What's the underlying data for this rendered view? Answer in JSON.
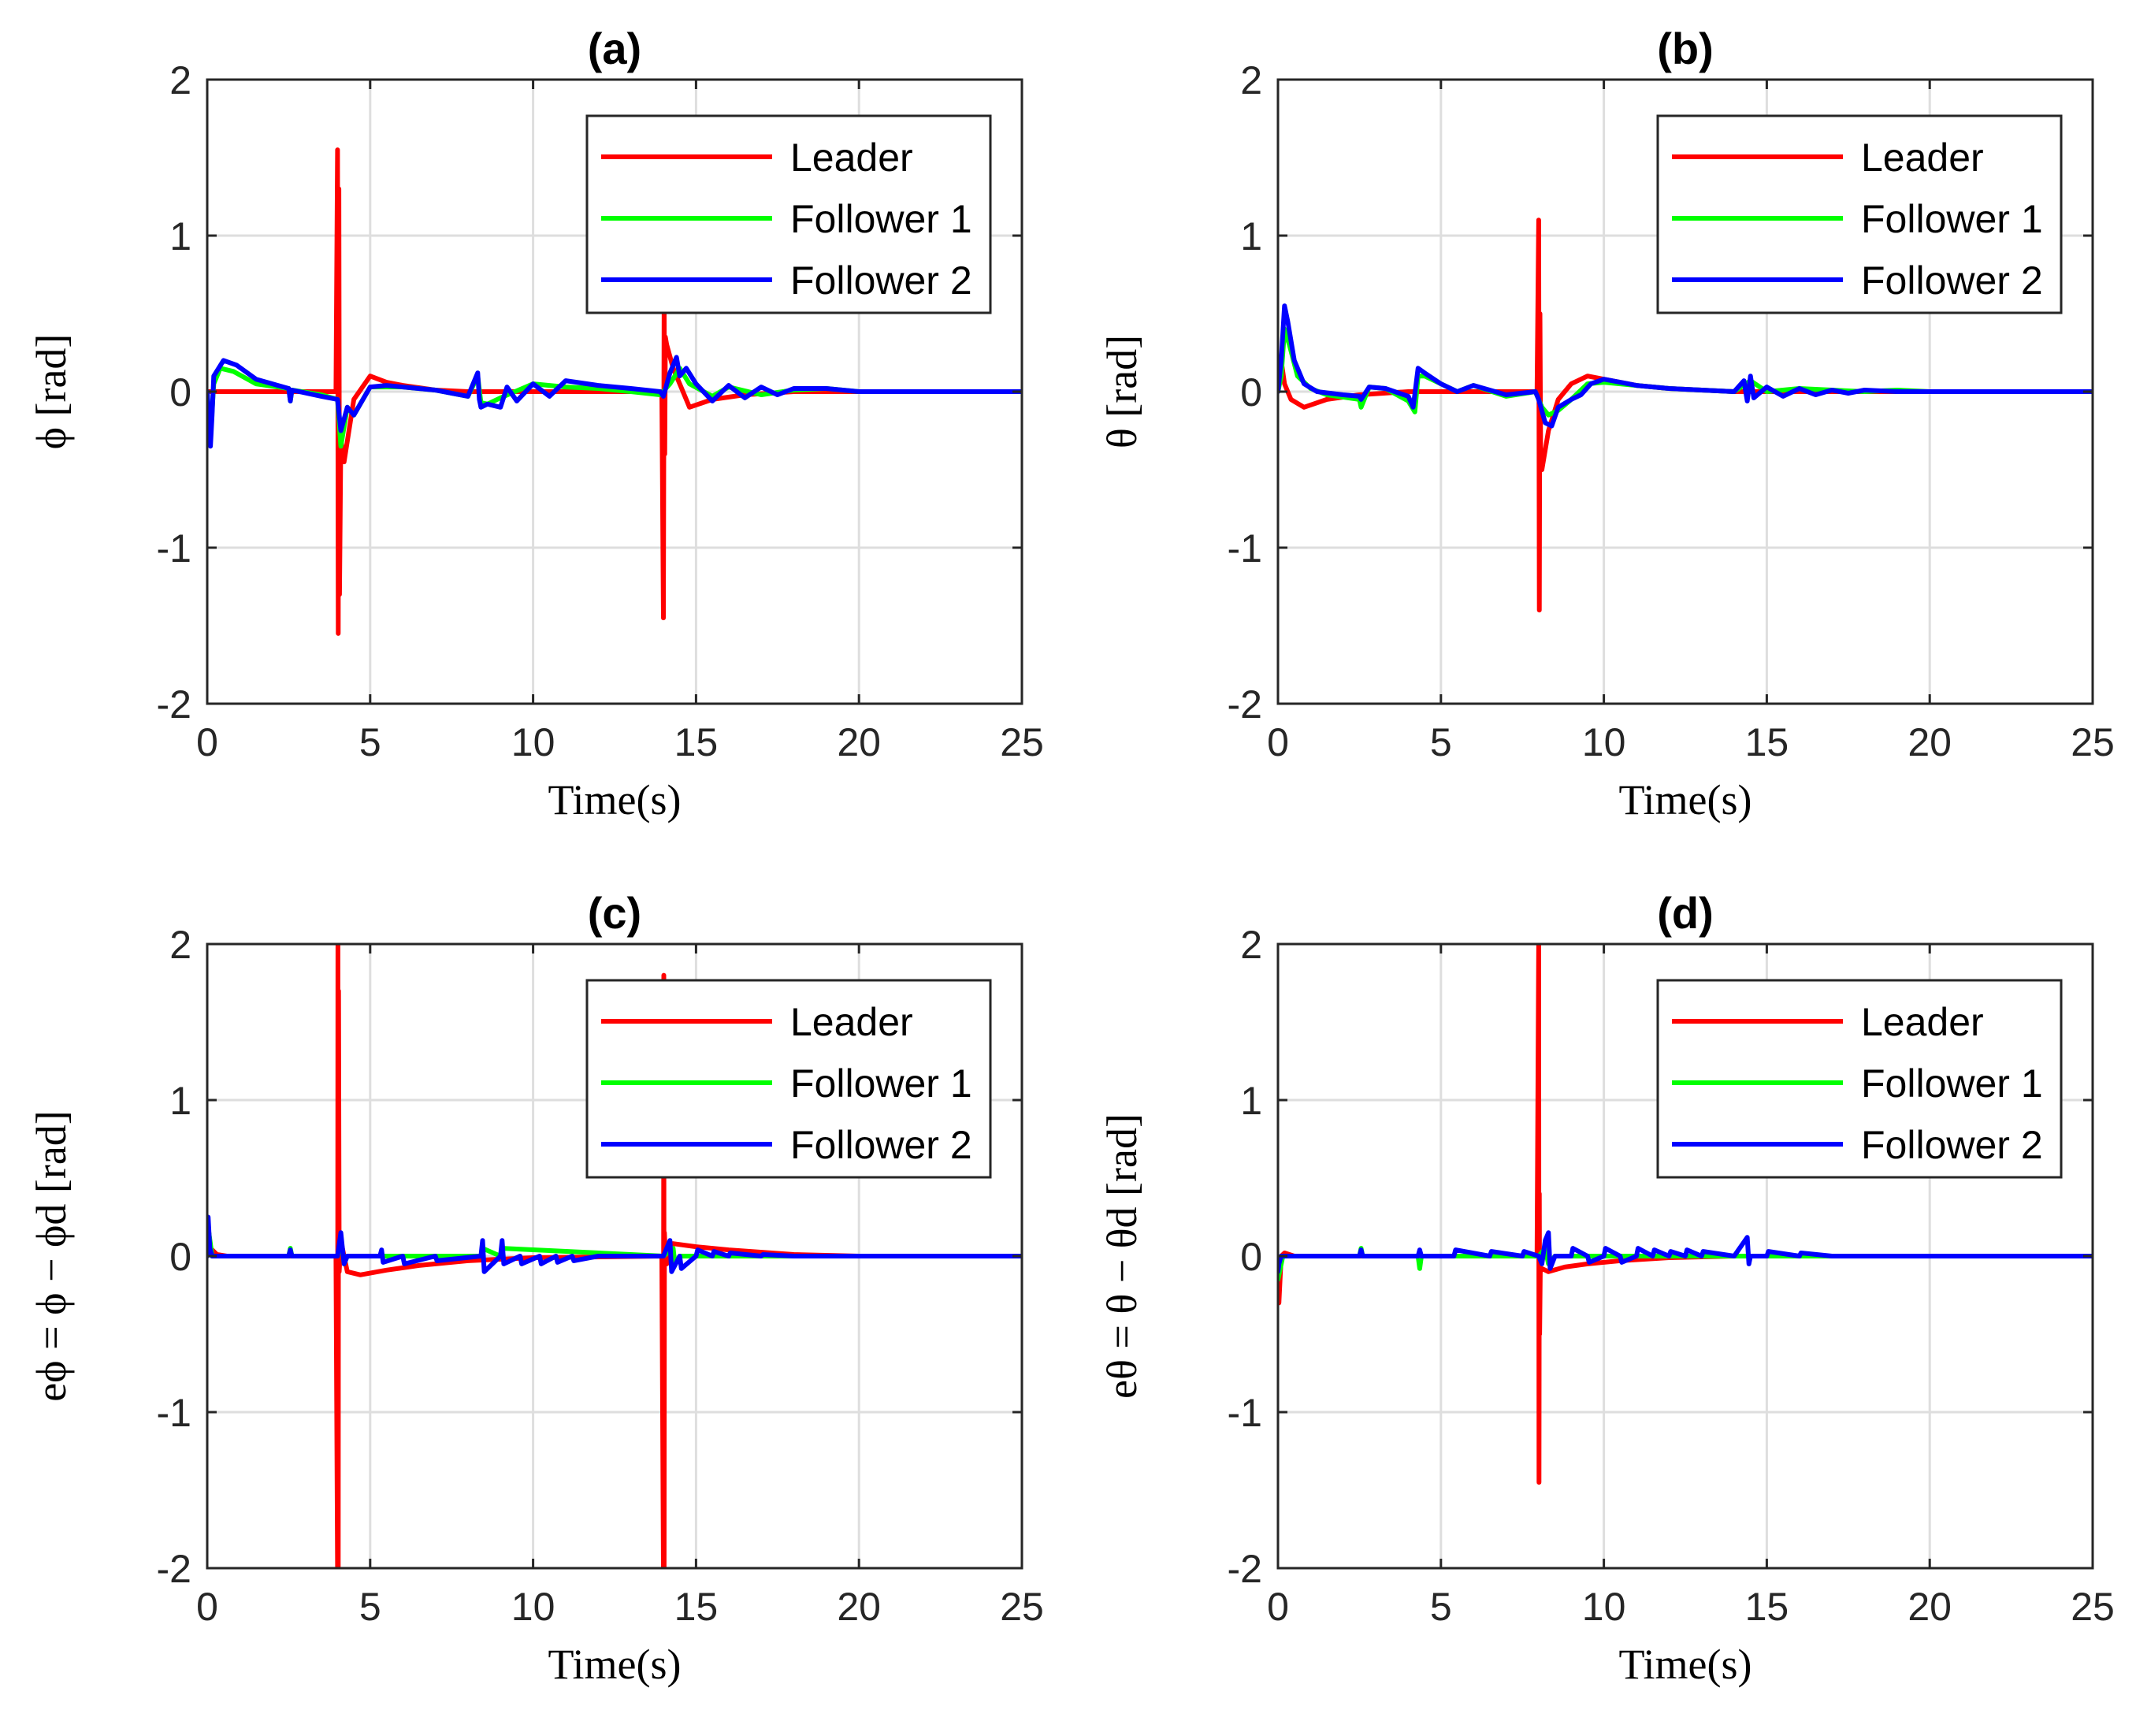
{
  "chart_data": [
    {
      "type": "line",
      "panel": "a",
      "title": "(a)",
      "xlabel": "Time(s)",
      "ylabel": "ϕ [rad]",
      "xlim": [
        0,
        25
      ],
      "ylim": [
        -2,
        2
      ],
      "xticks": [
        0,
        5,
        10,
        15,
        20,
        25
      ],
      "yticks": [
        -2,
        -1,
        0,
        1,
        2
      ],
      "grid": true,
      "legend_position": "top-right",
      "series": [
        {
          "name": "Leader",
          "color": "#ff0000",
          "x": [
            0,
            3.5,
            3.95,
            4.0,
            4.02,
            4.04,
            4.06,
            4.1,
            4.2,
            4.5,
            5.0,
            5.5,
            6,
            7,
            8,
            10,
            12,
            13.5,
            13.95,
            14.0,
            14.02,
            14.04,
            14.06,
            14.1,
            14.3,
            14.8,
            15.5,
            16.5,
            18,
            20,
            25
          ],
          "y": [
            0,
            0,
            0,
            1.55,
            -1.55,
            1.3,
            -1.3,
            -0.3,
            -0.45,
            -0.05,
            0.1,
            0.06,
            0.04,
            0.01,
            0,
            0,
            0,
            0,
            0,
            -1.45,
            0.6,
            -0.4,
            0.35,
            0.3,
            0.15,
            -0.1,
            -0.05,
            -0.02,
            0,
            0,
            0
          ]
        },
        {
          "name": "Follower 1",
          "color": "#00ff00",
          "x": [
            0,
            0.1,
            0.2,
            0.4,
            0.8,
            1.5,
            2.5,
            2.55,
            2.6,
            3.5,
            4.0,
            4.1,
            4.3,
            4.5,
            5.0,
            6,
            7,
            8,
            8.3,
            8.4,
            8.6,
            9,
            10,
            11,
            12,
            13,
            13.9,
            14.2,
            14.5,
            14.8,
            15.5,
            16,
            17,
            18,
            19,
            20,
            25
          ],
          "y": [
            0,
            -0.3,
            0.05,
            0.15,
            0.13,
            0.05,
            0.02,
            -0.06,
            0.01,
            -0.02,
            -0.05,
            -0.35,
            -0.1,
            -0.15,
            0.03,
            0.03,
            0.01,
            -0.03,
            0.1,
            -0.07,
            -0.08,
            -0.04,
            0.05,
            0.03,
            0.02,
            0.0,
            -0.02,
            0.05,
            0.15,
            0.05,
            -0.03,
            0.03,
            -0.02,
            0.01,
            0.02,
            0,
            0
          ]
        },
        {
          "name": "Follower 2",
          "color": "#0000ff",
          "x": [
            0,
            0.1,
            0.15,
            0.2,
            0.5,
            0.9,
            1.5,
            2.5,
            2.55,
            2.6,
            3.5,
            4.0,
            4.1,
            4.3,
            4.5,
            5.0,
            5.5,
            6,
            7,
            8,
            8.3,
            8.35,
            8.4,
            8.6,
            9,
            9.2,
            9.5,
            10,
            10.5,
            11,
            12,
            13,
            13.9,
            14.0,
            14.2,
            14.4,
            14.5,
            14.7,
            15,
            15.5,
            16,
            16.5,
            17,
            17.5,
            18,
            18.5,
            19,
            20,
            25
          ],
          "y": [
            0,
            -0.35,
            -0.15,
            0.1,
            0.2,
            0.17,
            0.08,
            0.02,
            -0.06,
            0.01,
            -0.03,
            -0.05,
            -0.25,
            -0.1,
            -0.15,
            0.03,
            0.04,
            0.03,
            0.01,
            -0.03,
            0.12,
            -0.05,
            -0.1,
            -0.08,
            -0.1,
            0.03,
            -0.06,
            0.05,
            -0.03,
            0.07,
            0.04,
            0.02,
            0.0,
            -0.03,
            0.12,
            0.22,
            0.1,
            0.15,
            0.05,
            -0.06,
            0.04,
            -0.04,
            0.03,
            -0.02,
            0.02,
            0.02,
            0.02,
            0.0,
            0
          ]
        }
      ]
    },
    {
      "type": "line",
      "panel": "b",
      "title": "(b)",
      "xlabel": "Time(s)",
      "ylabel": "θ [rad]",
      "xlim": [
        0,
        25
      ],
      "ylim": [
        -2,
        2
      ],
      "xticks": [
        0,
        5,
        10,
        15,
        20,
        25
      ],
      "yticks": [
        -2,
        -1,
        0,
        1,
        2
      ],
      "grid": true,
      "legend_position": "top-right",
      "series": [
        {
          "name": "Leader",
          "color": "#ff0000",
          "x": [
            0,
            0.1,
            0.2,
            0.4,
            0.8,
            1.5,
            2.5,
            4,
            6,
            7.5,
            7.95,
            8.0,
            8.02,
            8.04,
            8.06,
            8.1,
            8.3,
            8.6,
            9.0,
            9.5,
            10,
            11,
            12,
            14,
            25
          ],
          "y": [
            0,
            0.2,
            0.05,
            -0.05,
            -0.1,
            -0.05,
            -0.02,
            0,
            0,
            0,
            0,
            1.1,
            -1.4,
            0.5,
            -0.4,
            -0.5,
            -0.25,
            -0.05,
            0.05,
            0.1,
            0.08,
            0.04,
            0.02,
            0,
            0
          ]
        },
        {
          "name": "Follower 1",
          "color": "#00ff00",
          "x": [
            0,
            0.1,
            0.2,
            0.35,
            0.6,
            1.0,
            1.5,
            2.5,
            2.55,
            2.8,
            3.3,
            4.0,
            4.2,
            4.3,
            4.5,
            5,
            5.5,
            6,
            7,
            7.9,
            8.1,
            8.3,
            8.6,
            9,
            9.5,
            10,
            11,
            12,
            13,
            14,
            14.5,
            15,
            16,
            17,
            18,
            19,
            20,
            25
          ],
          "y": [
            0,
            0.1,
            0.4,
            0.3,
            0.1,
            0.02,
            -0.02,
            -0.05,
            -0.1,
            0.03,
            0.02,
            -0.06,
            -0.13,
            0.1,
            0.1,
            0.05,
            0.0,
            0.04,
            -0.03,
            0.0,
            -0.1,
            -0.15,
            -0.12,
            -0.05,
            0.05,
            0.06,
            0.04,
            0.02,
            0.01,
            0.0,
            0.07,
            0.0,
            0.02,
            0.01,
            0.0,
            0.01,
            0,
            0
          ]
        },
        {
          "name": "Follower 2",
          "color": "#0000ff",
          "x": [
            0,
            0.1,
            0.2,
            0.3,
            0.5,
            0.8,
            1.2,
            2.0,
            2.5,
            2.55,
            2.8,
            3.3,
            4.0,
            4.15,
            4.3,
            4.5,
            5,
            5.5,
            6,
            7,
            7.9,
            8.0,
            8.2,
            8.4,
            8.6,
            9,
            9.3,
            9.6,
            10,
            10.5,
            11,
            12,
            13,
            14,
            14.3,
            14.4,
            14.5,
            14.6,
            15,
            15.5,
            16,
            16.5,
            17,
            17.5,
            18,
            19,
            20,
            25
          ],
          "y": [
            0,
            0.2,
            0.55,
            0.45,
            0.2,
            0.05,
            0.0,
            -0.02,
            -0.03,
            -0.05,
            0.03,
            0.02,
            -0.03,
            -0.1,
            0.15,
            0.12,
            0.05,
            0.0,
            0.04,
            -0.02,
            0.0,
            -0.05,
            -0.2,
            -0.22,
            -0.1,
            -0.05,
            -0.02,
            0.05,
            0.08,
            0.06,
            0.04,
            0.02,
            0.01,
            0.0,
            0.07,
            -0.06,
            0.1,
            -0.04,
            0.03,
            -0.03,
            0.02,
            -0.02,
            0.01,
            -0.01,
            0.01,
            0.0,
            0.0,
            0
          ]
        }
      ]
    },
    {
      "type": "line",
      "panel": "c",
      "title": "(c)",
      "xlabel": "Time(s)",
      "ylabel": "eϕ = ϕ − ϕd [rad]",
      "xlim": [
        0,
        25
      ],
      "ylim": [
        -2,
        2
      ],
      "xticks": [
        0,
        5,
        10,
        15,
        20,
        25
      ],
      "yticks": [
        -2,
        -1,
        0,
        1,
        2
      ],
      "grid": true,
      "legend_position": "top-right",
      "series": [
        {
          "name": "Leader",
          "color": "#ff0000",
          "x": [
            0,
            0.05,
            0.1,
            0.3,
            0.6,
            3.95,
            4.0,
            4.01,
            4.02,
            4.03,
            4.05,
            4.1,
            4.3,
            4.7,
            5.5,
            6.5,
            8,
            10,
            13.95,
            14.0,
            14.01,
            14.02,
            14.03,
            14.05,
            14.1,
            14.3,
            15.0,
            16,
            18,
            20,
            25
          ],
          "y": [
            0,
            0.15,
            0.05,
            0.01,
            0,
            0,
            -2.0,
            2.0,
            -2.0,
            1.7,
            -0.1,
            0.1,
            -0.1,
            -0.12,
            -0.09,
            -0.06,
            -0.03,
            -0.01,
            0,
            -2.0,
            1.8,
            -2.0,
            0.15,
            0.05,
            -0.05,
            0.08,
            0.06,
            0.04,
            0.01,
            0,
            0
          ]
        },
        {
          "name": "Follower 1",
          "color": "#00ff00",
          "x": [
            0,
            0.05,
            0.15,
            0.5,
            2.5,
            2.55,
            2.6,
            4.0,
            4.1,
            4.2,
            4.3,
            5.5,
            8.4,
            8.45,
            9,
            9.05,
            14,
            14.3,
            14.35,
            14.5,
            15,
            25
          ],
          "y": [
            0,
            0.15,
            0.0,
            0.0,
            0.0,
            0.05,
            0.0,
            0.0,
            0.12,
            -0.05,
            0.0,
            0.0,
            0.0,
            0.05,
            0.0,
            0.05,
            0.0,
            0.05,
            -0.05,
            0.0,
            0.0,
            0
          ]
        },
        {
          "name": "Follower 2",
          "color": "#0000ff",
          "x": [
            0,
            0.03,
            0.08,
            0.15,
            0.5,
            2.5,
            2.55,
            2.6,
            4.0,
            4.1,
            4.2,
            4.3,
            5.3,
            5.35,
            5.4,
            6,
            6.05,
            7,
            7.05,
            8.4,
            8.45,
            8.5,
            9,
            9.05,
            9.1,
            9.6,
            9.65,
            10.2,
            10.25,
            10.7,
            10.75,
            11.2,
            11.25,
            12,
            14,
            14.2,
            14.25,
            14.5,
            14.55,
            15,
            15.05,
            15.5,
            15.55,
            16,
            16.05,
            17,
            17.05,
            18,
            20,
            25
          ],
          "y": [
            0,
            0.25,
            0.05,
            0.0,
            0.0,
            0.0,
            0.04,
            0.0,
            0.0,
            0.15,
            -0.05,
            0.0,
            0.0,
            0.04,
            -0.04,
            0.0,
            -0.05,
            0.0,
            -0.03,
            0.0,
            0.1,
            -0.1,
            0.0,
            0.1,
            -0.05,
            0.0,
            -0.05,
            0.0,
            -0.05,
            0.0,
            -0.04,
            0.0,
            -0.03,
            0.0,
            0.0,
            0.1,
            -0.1,
            0.0,
            -0.08,
            0.0,
            0.04,
            0.0,
            0.03,
            0.0,
            0.02,
            0.0,
            0.01,
            0.0,
            0.0,
            0
          ]
        }
      ]
    },
    {
      "type": "line",
      "panel": "d",
      "title": "(d)",
      "xlabel": "Time(s)",
      "ylabel": "eθ = θ − θd [rad]",
      "xlim": [
        0,
        25
      ],
      "ylim": [
        -2,
        2
      ],
      "xticks": [
        0,
        5,
        10,
        15,
        20,
        25
      ],
      "yticks": [
        -2,
        -1,
        0,
        1,
        2
      ],
      "grid": true,
      "legend_position": "top-right",
      "series": [
        {
          "name": "Leader",
          "color": "#ff0000",
          "x": [
            0,
            0.03,
            0.1,
            0.2,
            0.5,
            7.95,
            8.0,
            8.01,
            8.02,
            8.03,
            8.05,
            8.1,
            8.3,
            8.8,
            9.5,
            10.5,
            12,
            14,
            25
          ],
          "y": [
            -0.3,
            -0.3,
            0.0,
            0.02,
            0.0,
            0.0,
            2.0,
            -1.45,
            0.4,
            -0.5,
            -0.1,
            -0.08,
            -0.1,
            -0.07,
            -0.05,
            -0.03,
            -0.01,
            0.0,
            0
          ]
        },
        {
          "name": "Follower 1",
          "color": "#00ff00",
          "x": [
            0,
            0.05,
            0.15,
            0.5,
            2.5,
            2.55,
            2.6,
            4.3,
            4.35,
            4.4,
            8.0,
            8.2,
            8.3,
            8.5,
            25
          ],
          "y": [
            -0.15,
            -0.1,
            0.0,
            0.0,
            0.0,
            0.05,
            0.0,
            0.0,
            -0.08,
            0.0,
            0.0,
            0.05,
            -0.05,
            0.0,
            0
          ]
        },
        {
          "name": "Follower 2",
          "color": "#0000ff",
          "x": [
            0,
            0.03,
            0.1,
            0.3,
            2.5,
            2.55,
            2.6,
            4.3,
            4.35,
            4.4,
            5.4,
            5.45,
            6.5,
            6.55,
            7.5,
            7.55,
            8.0,
            8.1,
            8.2,
            8.3,
            8.35,
            8.5,
            9,
            9.05,
            9.5,
            9.55,
            10,
            10.05,
            10.5,
            10.55,
            11,
            11.05,
            11.5,
            11.55,
            12,
            12.05,
            12.5,
            12.55,
            13,
            13.05,
            14,
            14.4,
            14.45,
            14.5,
            15,
            15.05,
            16,
            16.05,
            17,
            18,
            25
          ],
          "y": [
            -0.1,
            -0.05,
            0.0,
            0.0,
            0.0,
            0.04,
            0.0,
            0.0,
            0.04,
            0.0,
            0.0,
            0.04,
            0.0,
            0.03,
            0.0,
            0.03,
            0.0,
            -0.05,
            0.1,
            0.15,
            -0.08,
            0.0,
            0.0,
            0.05,
            0.0,
            -0.04,
            0.0,
            0.05,
            0.0,
            -0.04,
            0.0,
            0.05,
            0.0,
            0.04,
            0.0,
            0.03,
            0.0,
            0.04,
            0.0,
            0.03,
            0.0,
            0.12,
            -0.05,
            0.0,
            0.0,
            0.03,
            0.0,
            0.02,
            0.0,
            0.0,
            0
          ]
        }
      ]
    }
  ]
}
